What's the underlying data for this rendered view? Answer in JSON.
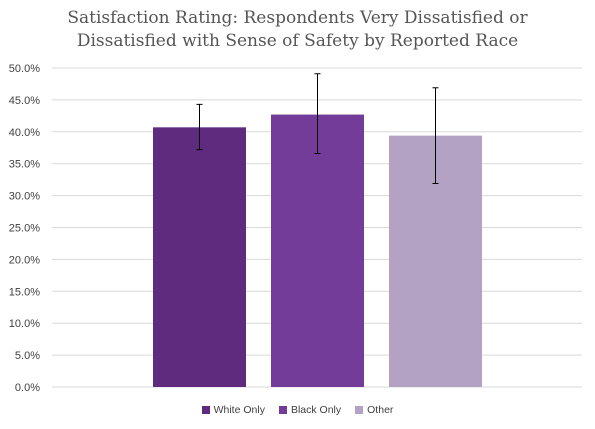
{
  "chart_data": {
    "type": "bar",
    "title": "Satisfaction Rating: Respondents Very Dissatisfied or Dissatisfied with Sense of Safety by Reported Race",
    "title_lines": [
      "Satisfaction Rating: Respondents Very Dissatisfied or",
      "Dissatisfied with Sense of Safety by Reported Race"
    ],
    "categories": [
      "White Only",
      "Black Only",
      "Other"
    ],
    "series": [
      {
        "name": "White Only",
        "value": 0.407,
        "err_low": 0.372,
        "err_high": 0.443,
        "color": "#5e2b7e"
      },
      {
        "name": "Black Only",
        "value": 0.427,
        "err_low": 0.366,
        "err_high": 0.491,
        "color": "#733c98"
      },
      {
        "name": "Other",
        "value": 0.394,
        "err_low": 0.319,
        "err_high": 0.469,
        "color": "#b4a2c4"
      }
    ],
    "ylim": [
      0,
      0.5
    ],
    "yticks": [
      "0.0%",
      "5.0%",
      "10.0%",
      "15.0%",
      "20.0%",
      "25.0%",
      "30.0%",
      "35.0%",
      "40.0%",
      "45.0%",
      "50.0%"
    ],
    "ytick_values": [
      0,
      0.05,
      0.1,
      0.15,
      0.2,
      0.25,
      0.3,
      0.35,
      0.4,
      0.45,
      0.5
    ],
    "grid": true,
    "legend_position": "bottom",
    "xlabel": "",
    "ylabel": ""
  }
}
